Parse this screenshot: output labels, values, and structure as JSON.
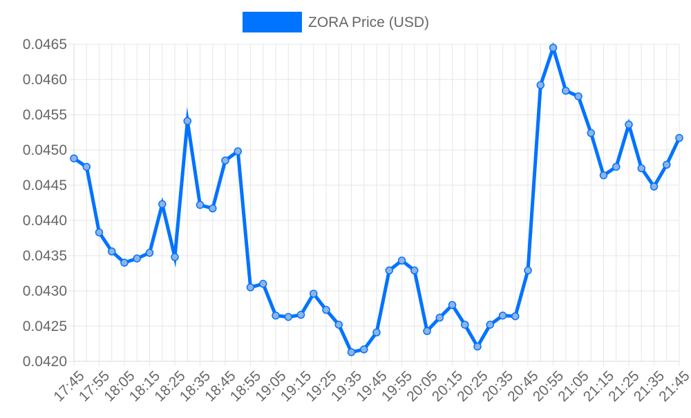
{
  "chart_data": {
    "type": "line",
    "ylim": [
      0.042,
      0.0465
    ],
    "yticks": [
      "0.0420",
      "0.0425",
      "0.0430",
      "0.0435",
      "0.0440",
      "0.0445",
      "0.0450",
      "0.0455",
      "0.0460",
      "0.0465"
    ],
    "xtick_labels": [
      "17:45",
      "17:55",
      "18:05",
      "18:15",
      "18:25",
      "18:35",
      "18:45",
      "18:55",
      "19:05",
      "19:15",
      "19:25",
      "19:35",
      "19:45",
      "19:55",
      "20:05",
      "20:15",
      "20:25",
      "20:35",
      "20:45",
      "20:55",
      "21:05",
      "21:15",
      "21:25",
      "21:35",
      "21:45"
    ],
    "x": [
      "17:45",
      "17:50",
      "17:55",
      "18:00",
      "18:05",
      "18:10",
      "18:15",
      "18:20",
      "18:25",
      "18:30",
      "18:35",
      "18:40",
      "18:45",
      "18:50",
      "18:55",
      "19:00",
      "19:05",
      "19:10",
      "19:15",
      "19:20",
      "19:25",
      "19:30",
      "19:35",
      "19:40",
      "19:45",
      "19:50",
      "19:55",
      "20:00",
      "20:05",
      "20:10",
      "20:15",
      "20:20",
      "20:25",
      "20:30",
      "20:35",
      "20:40",
      "20:45",
      "20:50",
      "20:55",
      "21:00",
      "21:05",
      "21:10",
      "21:15",
      "21:20",
      "21:25",
      "21:30",
      "21:35",
      "21:40",
      "21:45"
    ],
    "series": [
      {
        "name": "ZORA Price (USD)",
        "color": "#0073ff",
        "values": [
          0.04488,
          0.04476,
          0.04383,
          0.04356,
          0.0434,
          0.04346,
          0.04354,
          0.04423,
          0.04348,
          0.04541,
          0.04422,
          0.04417,
          0.04485,
          0.04498,
          0.04305,
          0.0431,
          0.04265,
          0.04263,
          0.04266,
          0.04296,
          0.04273,
          0.04252,
          0.04213,
          0.04217,
          0.04241,
          0.04329,
          0.04343,
          0.04329,
          0.04243,
          0.04262,
          0.0428,
          0.04252,
          0.04221,
          0.04252,
          0.04265,
          0.04264,
          0.04329,
          0.04592,
          0.04645,
          0.04584,
          0.04576,
          0.04524,
          0.04464,
          0.04476,
          0.04536,
          0.04474,
          0.04448,
          0.04479,
          0.04517
        ]
      }
    ],
    "grid": true,
    "legend_position": "top"
  }
}
